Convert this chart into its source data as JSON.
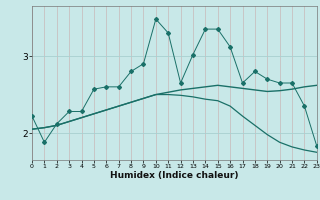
{
  "xlabel": "Humidex (Indice chaleur)",
  "bg_color": "#c8e8e8",
  "grid_v_color": "#c8b8b8",
  "grid_h_color": "#a8d0d0",
  "line_color": "#1a7068",
  "xlim": [
    0,
    23
  ],
  "ylim": [
    1.65,
    3.65
  ],
  "yticks": [
    2,
    3
  ],
  "xticks": [
    0,
    1,
    2,
    3,
    4,
    5,
    6,
    7,
    8,
    9,
    10,
    11,
    12,
    13,
    14,
    15,
    16,
    17,
    18,
    19,
    20,
    21,
    22,
    23
  ],
  "line1_x": [
    0,
    1,
    2,
    3,
    4,
    5,
    6,
    7,
    8,
    9,
    10,
    11,
    12,
    13,
    14,
    15,
    16,
    17,
    18,
    19,
    20,
    21,
    22,
    23
  ],
  "line1_y": [
    2.22,
    1.88,
    2.12,
    2.28,
    2.28,
    2.57,
    2.6,
    2.6,
    2.8,
    2.9,
    3.48,
    3.3,
    2.65,
    3.02,
    3.35,
    3.35,
    3.12,
    2.65,
    2.8,
    2.7,
    2.65,
    2.65,
    2.35,
    1.83
  ],
  "line2_x": [
    0,
    1,
    2,
    3,
    4,
    5,
    6,
    7,
    8,
    9,
    10,
    11,
    12,
    13,
    14,
    15,
    16,
    17,
    18,
    19,
    20,
    21,
    22,
    23
  ],
  "line2_y": [
    2.05,
    2.07,
    2.1,
    2.15,
    2.2,
    2.25,
    2.3,
    2.35,
    2.4,
    2.45,
    2.5,
    2.53,
    2.56,
    2.58,
    2.6,
    2.62,
    2.6,
    2.58,
    2.56,
    2.54,
    2.55,
    2.57,
    2.6,
    2.62
  ],
  "line3_x": [
    0,
    1,
    2,
    3,
    4,
    5,
    6,
    7,
    8,
    9,
    10,
    11,
    12,
    13,
    14,
    15,
    16,
    17,
    18,
    19,
    20,
    21,
    22,
    23
  ],
  "line3_y": [
    2.05,
    2.07,
    2.1,
    2.15,
    2.2,
    2.25,
    2.3,
    2.35,
    2.4,
    2.45,
    2.5,
    2.5,
    2.49,
    2.47,
    2.44,
    2.42,
    2.35,
    2.22,
    2.1,
    1.98,
    1.88,
    1.82,
    1.78,
    1.75
  ]
}
